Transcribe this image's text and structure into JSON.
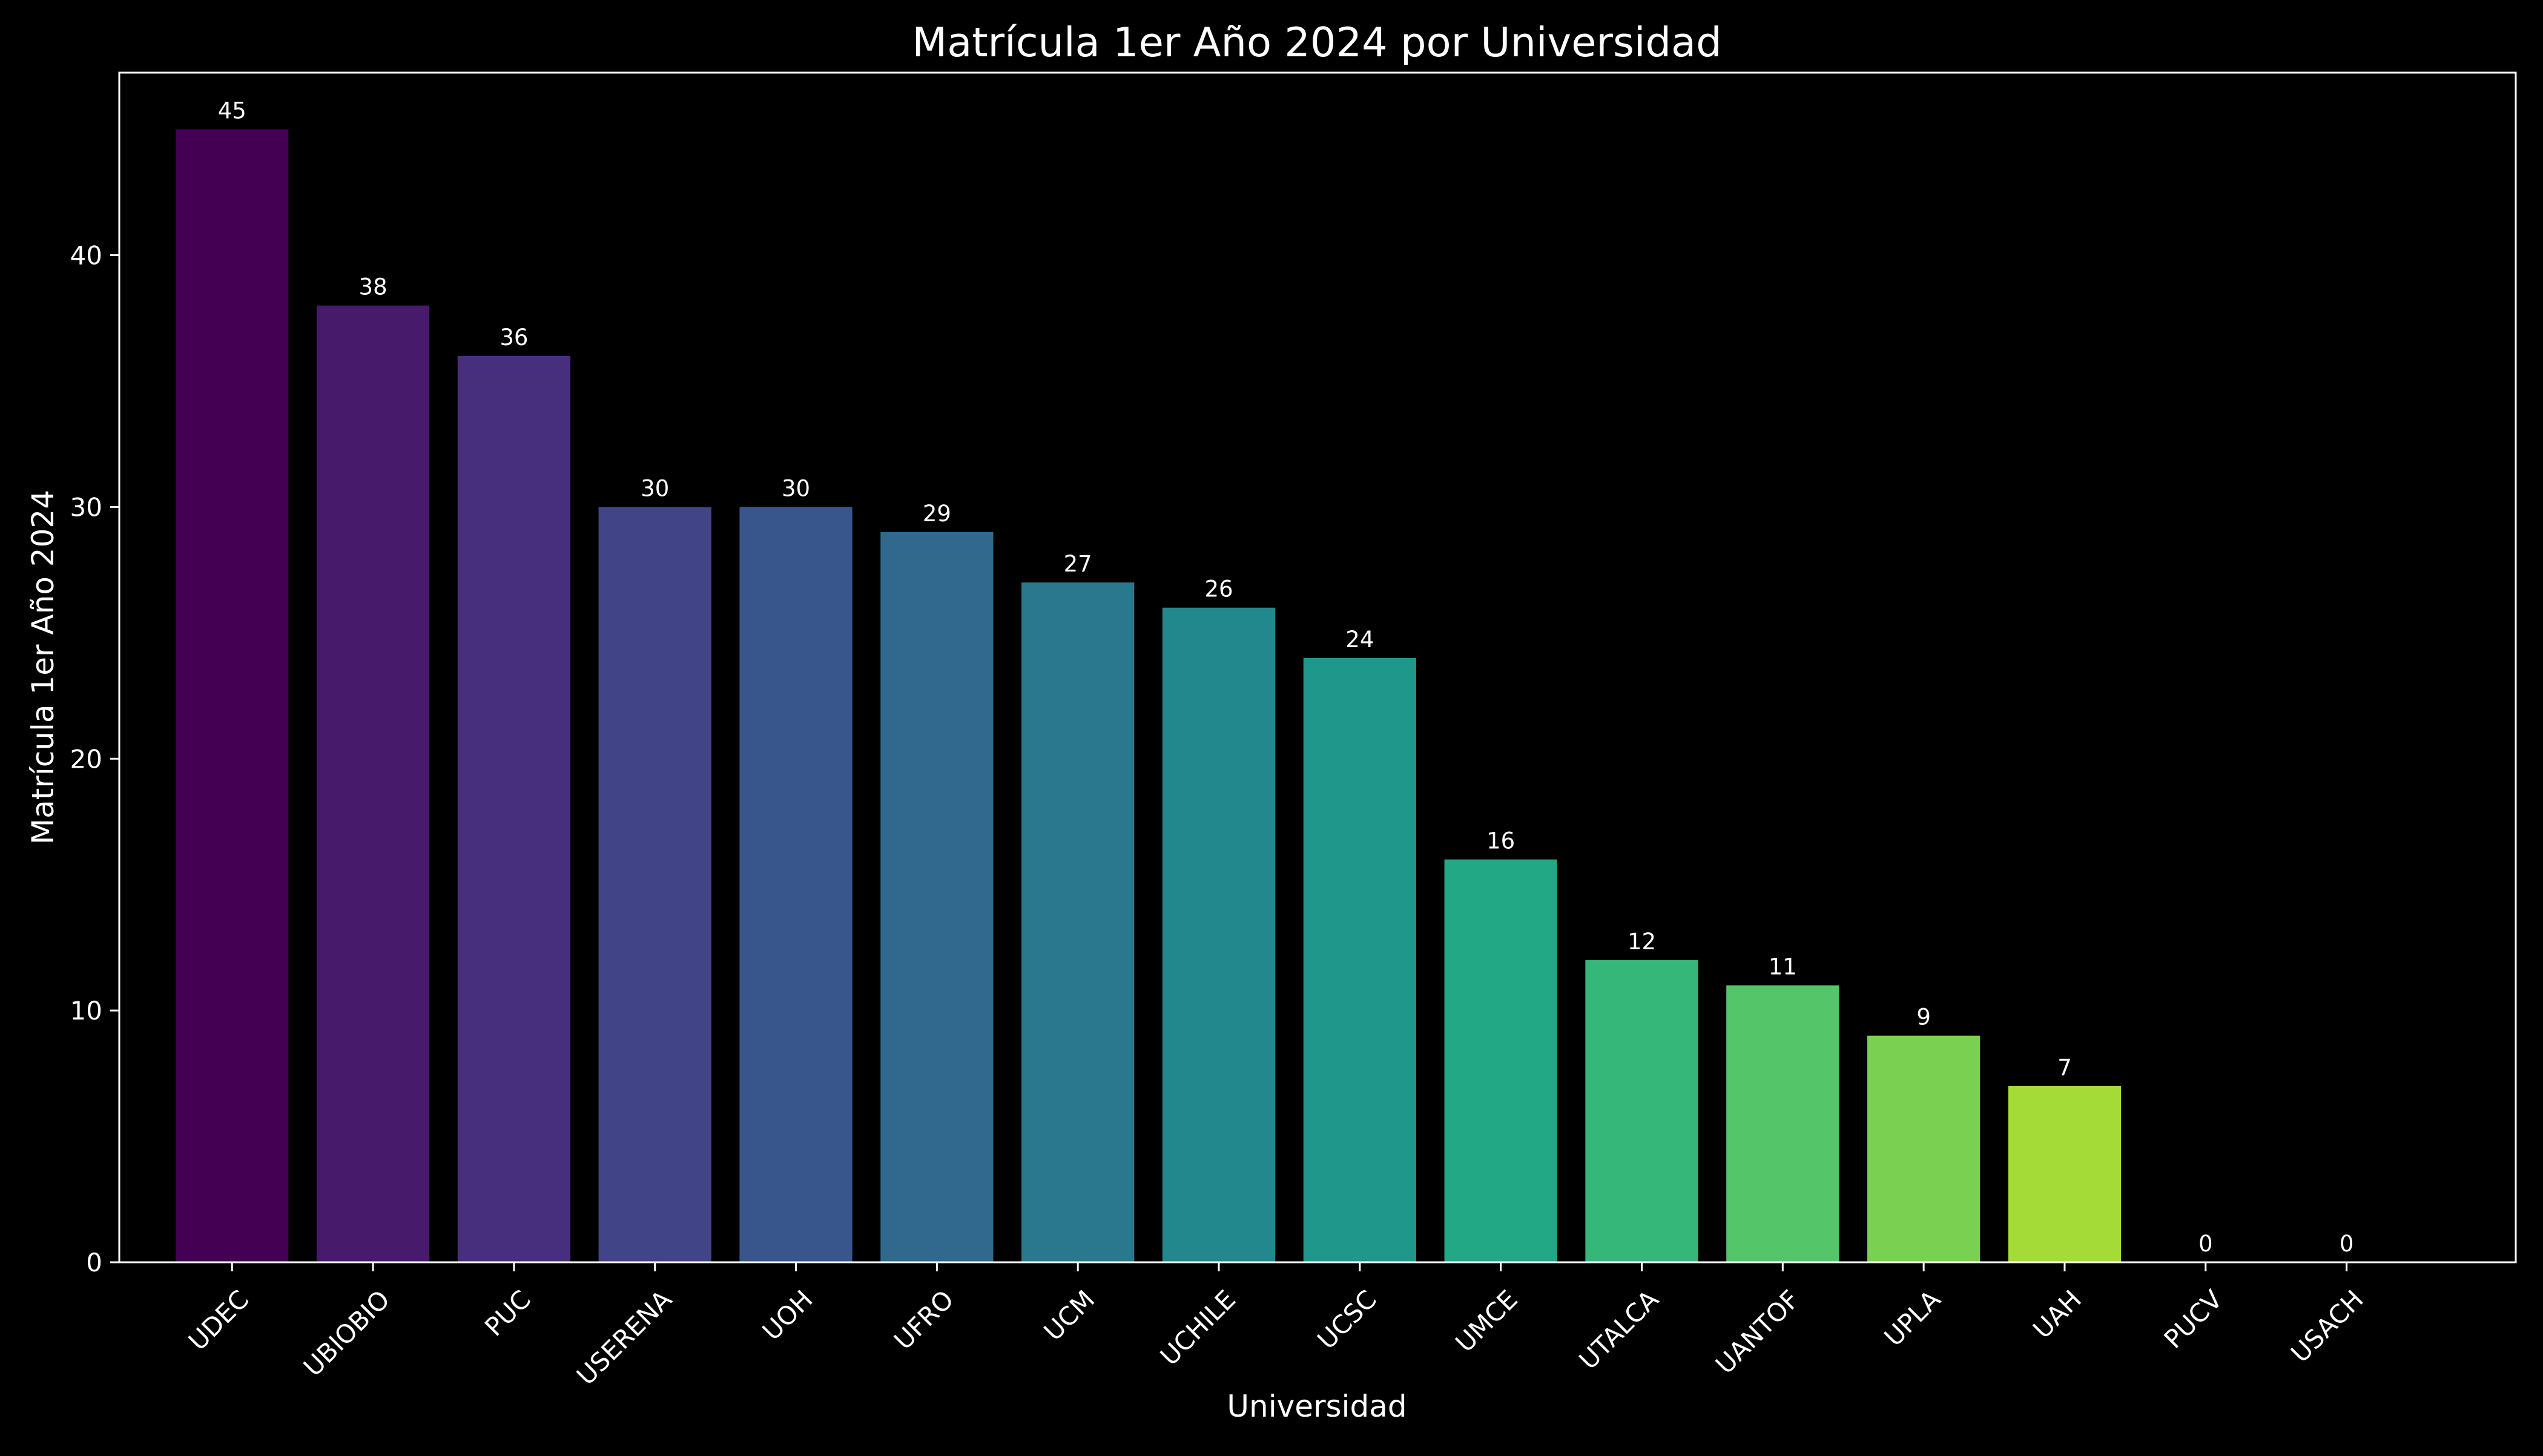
{
  "chart_data": {
    "type": "bar",
    "title": "Matrícula 1er Año 2024 por Universidad",
    "xlabel": "Universidad",
    "ylabel": "Matrícula 1er Año 2024",
    "categories": [
      "UDEC",
      "UBIOBIO",
      "PUC",
      "USERENA",
      "UOH",
      "UFRO",
      "UCM",
      "UCHILE",
      "UCSC",
      "UMCE",
      "UTALCA",
      "UANTOF",
      "UPLA",
      "UAH",
      "PUCV",
      "USACH"
    ],
    "values": [
      45,
      38,
      36,
      30,
      30,
      29,
      27,
      26,
      24,
      16,
      12,
      11,
      9,
      7,
      0,
      0
    ],
    "colors": [
      "#440154",
      "#481a6c",
      "#472f7d",
      "#414487",
      "#39568c",
      "#31688e",
      "#2a788e",
      "#23888e",
      "#1f988b",
      "#22a884",
      "#35b779",
      "#54c568",
      "#7ad151",
      "#a5db36",
      "#d2e21b",
      "#fde725"
    ],
    "ylim": [
      0,
      47.25
    ],
    "yticks": [
      0,
      10,
      20,
      30,
      40
    ],
    "grid": false,
    "legend": "none",
    "background": "#000000",
    "foreground": "#ffffff"
  }
}
